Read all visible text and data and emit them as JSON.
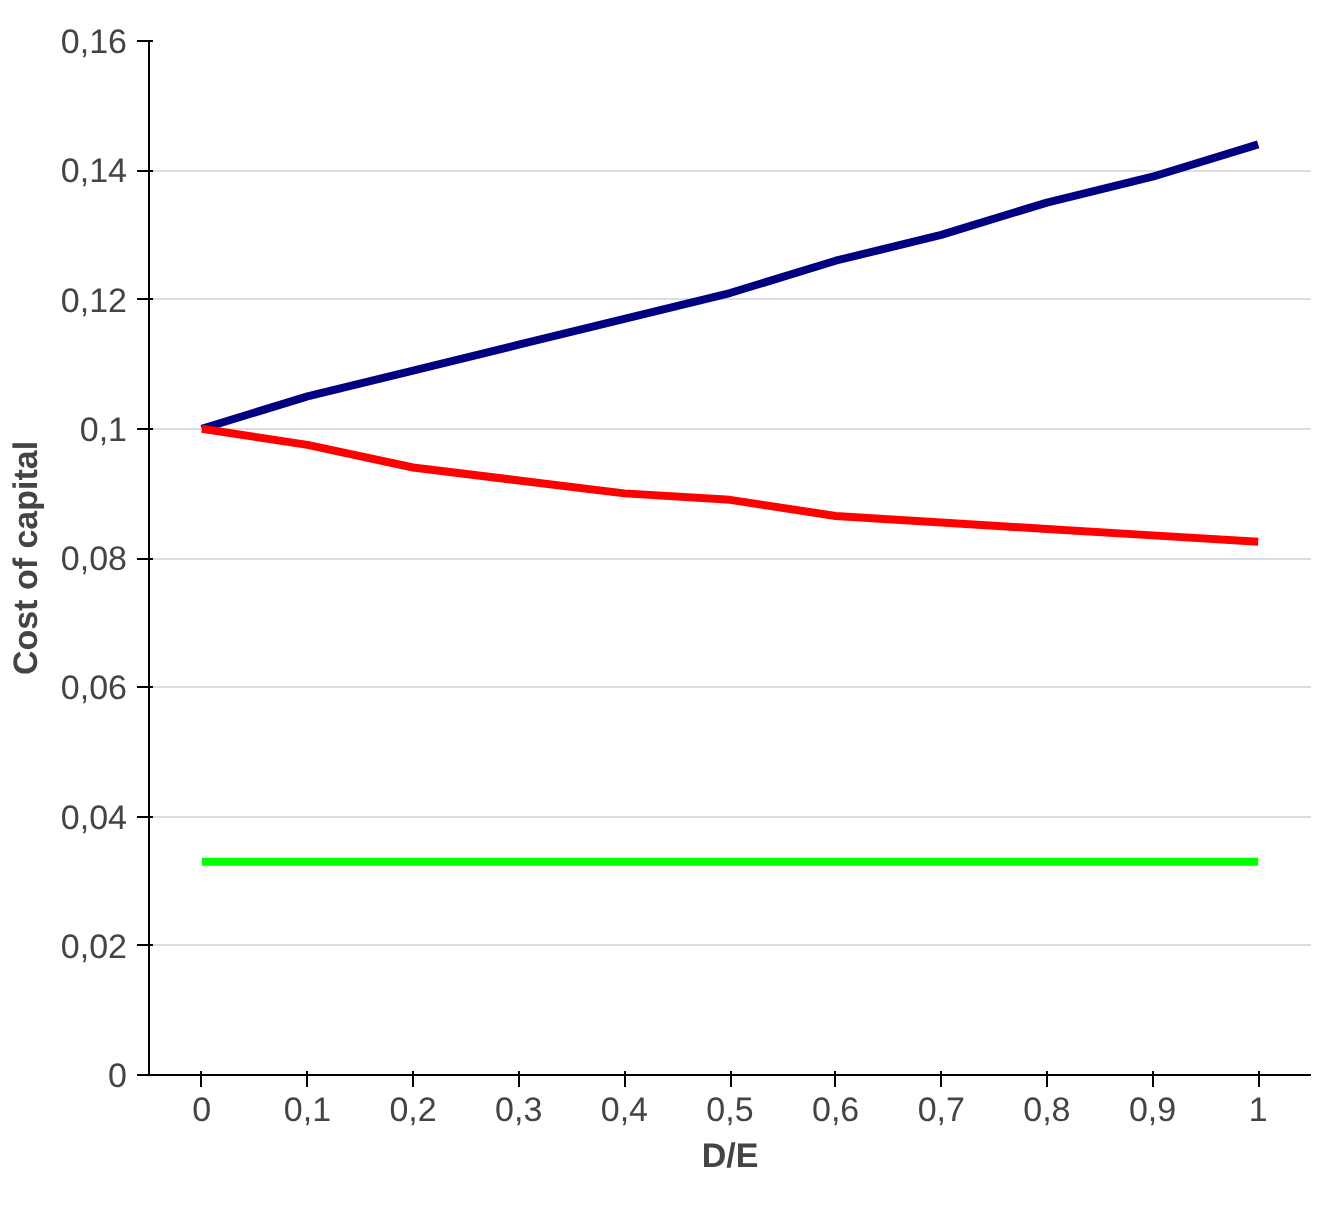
{
  "chart_data": {
    "type": "line",
    "xlabel": "D/E",
    "ylabel": "Cost of capital",
    "categories": [
      "0",
      "0,1",
      "0,2",
      "0,3",
      "0,4",
      "0,5",
      "0,6",
      "0,7",
      "0,8",
      "0,9",
      "1"
    ],
    "series": [
      {
        "color": "#000080",
        "values": [
          0.1,
          0.105,
          0.109,
          0.113,
          0.117,
          0.121,
          0.126,
          0.13,
          0.135,
          0.139,
          0.144
        ]
      },
      {
        "color": "#ff0000",
        "values": [
          0.1,
          0.0975,
          0.094,
          0.092,
          0.09,
          0.089,
          0.0865,
          0.0855,
          0.0845,
          0.0835,
          0.0825
        ]
      },
      {
        "color": "#00ff00",
        "values": [
          0.033,
          0.033,
          0.033,
          0.033,
          0.033,
          0.033,
          0.033,
          0.033,
          0.033,
          0.033,
          0.033
        ]
      }
    ],
    "ylim": [
      0,
      0.16
    ],
    "yticks": [
      0,
      {
        "value": 0.02,
        "label": "0,02"
      },
      {
        "value": 0.04,
        "label": "0,04"
      },
      {
        "value": 0.06,
        "label": "0,06"
      },
      {
        "value": 0.08,
        "label": "0,08"
      },
      {
        "value": 0.1,
        "label": "0,1"
      },
      {
        "value": 0.12,
        "label": "0,12"
      },
      {
        "value": 0.14,
        "label": "0,14"
      },
      {
        "value": 0.16,
        "label": "0,16"
      }
    ],
    "grid": "y",
    "marker": "none",
    "line_style": "solid"
  }
}
